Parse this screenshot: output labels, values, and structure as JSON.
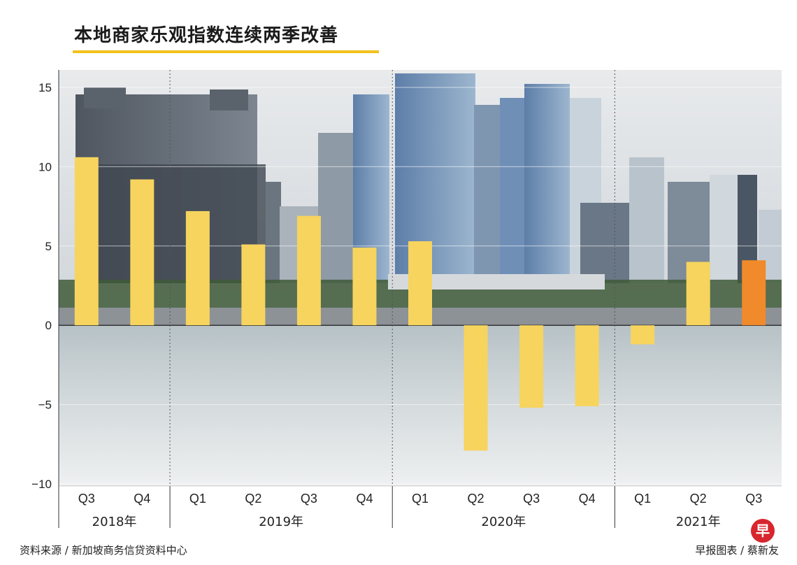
{
  "title": "本地商家乐观指数连续两季改善",
  "footer": {
    "source": "资料来源 / 新加坡商务信贷资料中心",
    "credit": "早报图表 / 蔡新友"
  },
  "logo_text": "早",
  "colors": {
    "bar": "#f6d45e",
    "bar_highlight": "#f08a2a",
    "title_underline": "#f2c21c"
  },
  "chart_data": {
    "type": "bar",
    "title": "本地商家乐观指数连续两季改善",
    "xlabel": "",
    "ylabel": "",
    "ylim": [
      -10,
      15
    ],
    "yticks": [
      "15",
      "10",
      "5",
      "0",
      "−5",
      "−10"
    ],
    "ytick_values": [
      15,
      10,
      5,
      0,
      -5,
      -10
    ],
    "grid": true,
    "categories": [
      "Q3",
      "Q4",
      "Q1",
      "Q2",
      "Q3",
      "Q4",
      "Q1",
      "Q2",
      "Q3",
      "Q4",
      "Q1",
      "Q2",
      "Q3"
    ],
    "values": [
      10.6,
      9.2,
      7.2,
      5.1,
      6.9,
      4.9,
      5.3,
      -7.9,
      -5.2,
      -5.1,
      -1.2,
      4.0,
      4.1
    ],
    "highlight_index": 12,
    "year_groups": [
      {
        "label": "2018年",
        "count": 2
      },
      {
        "label": "2019年",
        "count": 4
      },
      {
        "label": "2020年",
        "count": 4
      },
      {
        "label": "2021年",
        "count": 3
      }
    ]
  }
}
